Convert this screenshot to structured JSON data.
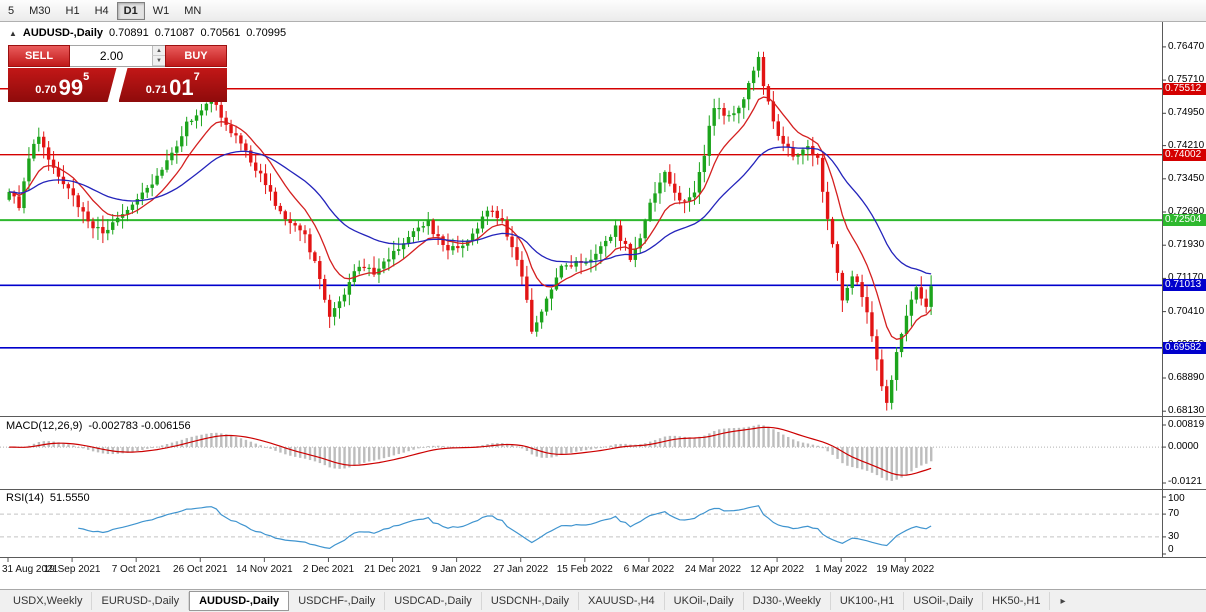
{
  "toolbar": {
    "timeframes": [
      {
        "label": "5",
        "active": false
      },
      {
        "label": "M30",
        "active": false
      },
      {
        "label": "H1",
        "active": false
      },
      {
        "label": "H4",
        "active": false
      },
      {
        "label": "D1",
        "active": true
      },
      {
        "label": "W1",
        "active": false
      },
      {
        "label": "MN",
        "active": false
      }
    ]
  },
  "icons": {
    "collapse": "▲",
    "spin_up": "▲",
    "spin_down": "▼",
    "tabs_scroll": "▸"
  },
  "chart_header": {
    "symbol": "AUDUSD-,Daily",
    "open": "0.70891",
    "high": "0.71087",
    "low": "0.70561",
    "close": "0.70995"
  },
  "trade_panel": {
    "sell_label": "SELL",
    "buy_label": "BUY",
    "lot": "2.00",
    "sell": {
      "small": "0.70",
      "big": "99",
      "sup": "5"
    },
    "buy": {
      "small": "0.71",
      "big": "01",
      "sup": "7"
    }
  },
  "chart_data": {
    "type": "candlestick",
    "symbol": "AUDUSD",
    "timeframe": "Daily",
    "ohlc_display": [
      0.70891,
      0.71087,
      0.70561,
      0.70995
    ],
    "y_range": [
      0.6802,
      0.7704
    ],
    "y_ticks": [
      "0.76470",
      "0.75710",
      "0.74950",
      "0.74210",
      "0.73450",
      "0.72690",
      "0.71930",
      "0.71170",
      "0.70410",
      "0.69650",
      "0.68890",
      "0.68130"
    ],
    "candle_count": 188,
    "close_waypoints": [
      [
        0,
        0.731
      ],
      [
        2,
        0.7285
      ],
      [
        4,
        0.7395
      ],
      [
        6,
        0.7445
      ],
      [
        9,
        0.7372
      ],
      [
        13,
        0.7308
      ],
      [
        16,
        0.7242
      ],
      [
        19,
        0.7222
      ],
      [
        23,
        0.7268
      ],
      [
        26,
        0.73
      ],
      [
        30,
        0.7348
      ],
      [
        33,
        0.7402
      ],
      [
        36,
        0.7468
      ],
      [
        39,
        0.7502
      ],
      [
        41,
        0.7532
      ],
      [
        44,
        0.7468
      ],
      [
        48,
        0.7408
      ],
      [
        52,
        0.733
      ],
      [
        56,
        0.7252
      ],
      [
        60,
        0.7218
      ],
      [
        63,
        0.7118
      ],
      [
        65,
        0.7032
      ],
      [
        68,
        0.7082
      ],
      [
        71,
        0.7148
      ],
      [
        74,
        0.7128
      ],
      [
        78,
        0.7178
      ],
      [
        82,
        0.7228
      ],
      [
        85,
        0.7246
      ],
      [
        88,
        0.7186
      ],
      [
        91,
        0.7186
      ],
      [
        94,
        0.7216
      ],
      [
        97,
        0.7278
      ],
      [
        100,
        0.7254
      ],
      [
        102,
        0.7186
      ],
      [
        104,
        0.7118
      ],
      [
        106,
        0.7002
      ],
      [
        109,
        0.7066
      ],
      [
        112,
        0.7138
      ],
      [
        115,
        0.715
      ],
      [
        117,
        0.7146
      ],
      [
        120,
        0.719
      ],
      [
        123,
        0.7232
      ],
      [
        126,
        0.7166
      ],
      [
        128,
        0.7216
      ],
      [
        130,
        0.7292
      ],
      [
        133,
        0.7358
      ],
      [
        136,
        0.7292
      ],
      [
        139,
        0.7312
      ],
      [
        141,
        0.7405
      ],
      [
        143,
        0.7512
      ],
      [
        146,
        0.7488
      ],
      [
        149,
        0.7528
      ],
      [
        151,
        0.7598
      ],
      [
        152,
        0.7618
      ],
      [
        153,
        0.7558
      ],
      [
        156,
        0.7446
      ],
      [
        159,
        0.7398
      ],
      [
        162,
        0.7418
      ],
      [
        164,
        0.7388
      ],
      [
        166,
        0.7248
      ],
      [
        169,
        0.7072
      ],
      [
        171,
        0.7122
      ],
      [
        173,
        0.7082
      ],
      [
        175,
        0.6992
      ],
      [
        177,
        0.6878
      ],
      [
        178,
        0.6832
      ],
      [
        180,
        0.6952
      ],
      [
        182,
        0.7038
      ],
      [
        184,
        0.7092
      ],
      [
        186,
        0.7058
      ],
      [
        187,
        0.71
      ]
    ],
    "x_labels": [
      {
        "index": 0,
        "label": "31 Aug 2021"
      },
      {
        "index": 13,
        "label": "19 Sep 2021"
      },
      {
        "index": 26,
        "label": "7 Oct 2021"
      },
      {
        "index": 39,
        "label": "26 Oct 2021"
      },
      {
        "index": 52,
        "label": "14 Nov 2021"
      },
      {
        "index": 65,
        "label": "2 Dec 2021"
      },
      {
        "index": 78,
        "label": "21 Dec 2021"
      },
      {
        "index": 91,
        "label": "9 Jan 2022"
      },
      {
        "index": 104,
        "label": "27 Jan 2022"
      },
      {
        "index": 117,
        "label": "15 Feb 2022"
      },
      {
        "index": 130,
        "label": "6 Mar 2022"
      },
      {
        "index": 143,
        "label": "24 Mar 2022"
      },
      {
        "index": 156,
        "label": "12 Apr 2022"
      },
      {
        "index": 169,
        "label": "1 May 2022"
      },
      {
        "index": 182,
        "label": "19 May 2022"
      }
    ],
    "h_lines": [
      {
        "price": 0.75512,
        "label": "0.75512",
        "color": "#d40000",
        "width": 1.4
      },
      {
        "price": 0.74002,
        "label": "0.74002",
        "color": "#d40000",
        "width": 1.4
      },
      {
        "price": 0.72504,
        "label": "0.72504",
        "color": "#2eb82e",
        "width": 2
      },
      {
        "price": 0.71013,
        "label": "0.71013",
        "color": "#0000cc",
        "width": 1.6
      },
      {
        "price": 0.69582,
        "label": "0.69582",
        "color": "#0000cc",
        "width": 1.6
      }
    ],
    "colors": {
      "up": "#1ca41c",
      "down": "#e21414",
      "ma_fast": "#d42020",
      "ma_slow": "#2424bb"
    },
    "indicators": {
      "ma_fast_period": 10,
      "ma_slow_period": 32,
      "macd": {
        "label": "MACD(12,26,9)",
        "values": "-0.002783 -0.006156",
        "ticks": {
          "top": "0.00819",
          "zero": "0.0000",
          "bottom": "-0.0121"
        },
        "hist_color": "#bdbdbd",
        "signal_color": "#cc0000"
      },
      "rsi": {
        "label": "RSI(14)",
        "value": "51.5550",
        "ticks": [
          "100",
          "70",
          "30",
          "0"
        ],
        "levels": [
          70,
          30
        ],
        "color": "#3f94cf"
      }
    }
  },
  "tabs": {
    "items": [
      {
        "label": "USDX,Weekly",
        "active": false
      },
      {
        "label": "EURUSD-,Daily",
        "active": false
      },
      {
        "label": "AUDUSD-,Daily",
        "active": true
      },
      {
        "label": "USDCHF-,Daily",
        "active": false
      },
      {
        "label": "USDCAD-,Daily",
        "active": false
      },
      {
        "label": "USDCNH-,Daily",
        "active": false
      },
      {
        "label": "XAUUSD-,H4",
        "active": false
      },
      {
        "label": "UKOil-,Daily",
        "active": false
      },
      {
        "label": "DJ30-,Weekly",
        "active": false
      },
      {
        "label": "UK100-,H1",
        "active": false
      },
      {
        "label": "USOil-,Daily",
        "active": false
      },
      {
        "label": "HK50-,H1",
        "active": false
      }
    ]
  }
}
